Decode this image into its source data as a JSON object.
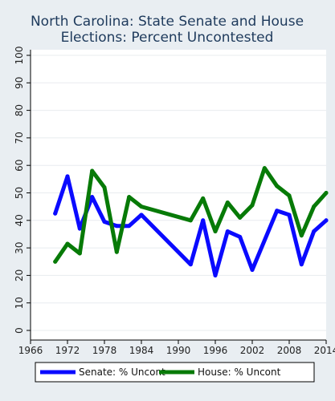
{
  "chart_data": {
    "type": "line",
    "title_lines": [
      "North Carolina: State Senate and House",
      "Elections: Percent Uncontested"
    ],
    "xlabel": "",
    "ylabel": "",
    "xlim": [
      1966,
      2014
    ],
    "ylim": [
      0,
      100
    ],
    "x_ticks": [
      "1966",
      "1972",
      "1978",
      "1984",
      "1990",
      "1996",
      "2002",
      "2008",
      "2014"
    ],
    "y_ticks": [
      "0",
      "10",
      "20",
      "30",
      "40",
      "50",
      "60",
      "70",
      "80",
      "90",
      "100"
    ],
    "grid": true,
    "legend_position": "bottom",
    "series": [
      {
        "name": "Senate: % Uncont",
        "color": "#0a0aff",
        "x": [
          1970,
          1972,
          1974,
          1976,
          1978,
          1980,
          1982,
          1984,
          1992,
          1994,
          1996,
          1998,
          2000,
          2002,
          2006,
          2008,
          2010,
          2012,
          2014
        ],
        "y": [
          42.5,
          56,
          37,
          48.5,
          39.5,
          38,
          38,
          42,
          24,
          40,
          20,
          36,
          34,
          22,
          43.5,
          42,
          24,
          36,
          40
        ]
      },
      {
        "name": "House: % Uncont",
        "color": "#077a07",
        "x": [
          1970,
          1972,
          1974,
          1976,
          1978,
          1980,
          1982,
          1984,
          1992,
          1994,
          1996,
          1998,
          2000,
          2002,
          2004,
          2006,
          2008,
          2010,
          2012,
          2014
        ],
        "y": [
          25,
          31.5,
          28,
          58,
          52,
          28.5,
          48.5,
          45,
          40,
          48,
          36,
          46.5,
          41,
          45.5,
          59,
          52.5,
          49,
          34.5,
          45,
          50
        ]
      }
    ]
  }
}
